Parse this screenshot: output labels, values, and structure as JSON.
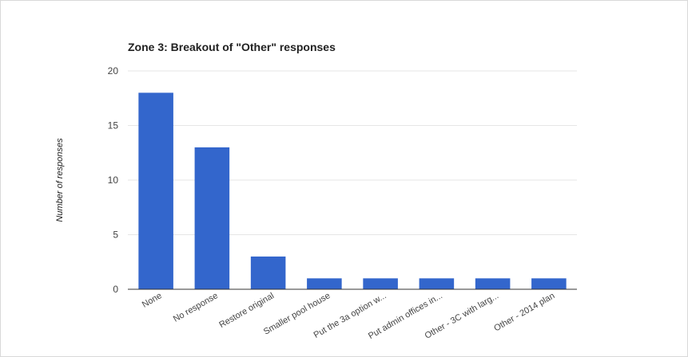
{
  "chart_data": {
    "type": "bar",
    "title": "Zone 3: Breakout of \"Other\" responses",
    "ylabel": "Number of responses",
    "xlabel": "",
    "categories": [
      "None",
      "No response",
      "Restore original",
      "Smaller pool house",
      "Put the 3a option w...",
      "Put admin offices in...",
      "Other - 3C with larg...",
      "Other - 2014 plan"
    ],
    "values": [
      18,
      13,
      3,
      1,
      1,
      1,
      1,
      1
    ],
    "ylim": [
      0,
      20
    ],
    "yticks": [
      0,
      5,
      10,
      15,
      20
    ],
    "grid": true,
    "legend": "none",
    "colors": {
      "bar": "#3366cc"
    }
  }
}
